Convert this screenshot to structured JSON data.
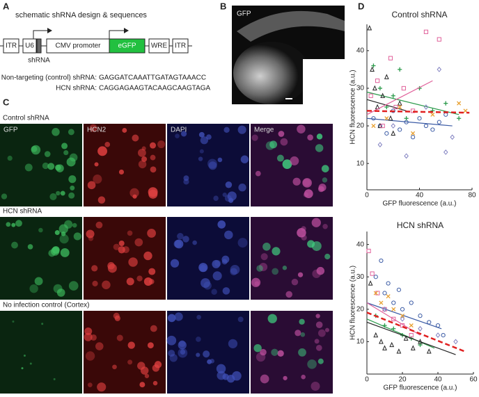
{
  "panels": {
    "a": "A",
    "b": "B",
    "c": "C",
    "d": "D"
  },
  "schematic": {
    "title": "schematic shRNA design & sequences",
    "elements": [
      "ITR",
      "U6",
      "CMV promoter",
      "eGFP",
      "WRE",
      "ITR"
    ],
    "shrna_label": "shRNA",
    "sequences": [
      {
        "label": "Non-targeting (control) shRNA:",
        "seq": "GAGGATCAAATTGATAGTAAACC"
      },
      {
        "label": "HCN shRNA:",
        "seq": "CAGGAGAAGTACAAGCAAGTAGA"
      }
    ]
  },
  "image_b": {
    "label": "GFP"
  },
  "image_grid": {
    "columns": [
      "GFP",
      "HCN2",
      "DAPI",
      "Merge"
    ],
    "rows": [
      "Control shRNA",
      "HCN shRNA",
      "No infection control (Cortex)"
    ]
  },
  "chart_data": [
    {
      "type": "scatter",
      "title": "Control shRNA",
      "x_label": "GFP fluorescence (a.u.)",
      "y_label": "HCN fluorescence (a.u.)",
      "xlim": [
        0,
        80
      ],
      "ylim": [
        3,
        47
      ],
      "xticks": [
        0,
        40,
        80
      ],
      "yticks": [
        10,
        20,
        30,
        40
      ],
      "series": [
        {
          "color": "#3b5ba5",
          "marker": "circle",
          "x": [
            5,
            10,
            15,
            20,
            25,
            30,
            35,
            40,
            45,
            50,
            55,
            60
          ],
          "values": [
            22,
            20,
            18,
            24,
            19,
            21,
            17,
            22,
            20,
            19,
            21,
            23
          ],
          "fit": {
            "x": [
              0,
              65
            ],
            "values": [
              22,
              20
            ]
          }
        },
        {
          "color": "#2a9a4a",
          "marker": "plus",
          "x": [
            5,
            10,
            15,
            20,
            25,
            30,
            40,
            50,
            60,
            70
          ],
          "values": [
            36,
            30,
            25,
            28,
            35,
            22,
            30,
            24,
            26,
            22
          ],
          "fit": {
            "x": [
              0,
              70
            ],
            "values": [
              29,
              23
            ]
          }
        },
        {
          "color": "#222222",
          "marker": "triangle",
          "x": [
            2,
            4,
            6,
            8,
            10,
            12,
            15,
            18,
            20,
            25
          ],
          "values": [
            46,
            35,
            30,
            25,
            20,
            28,
            33,
            22,
            18,
            26
          ],
          "fit": {
            "x": [
              0,
              30
            ],
            "values": [
              27,
              24
            ]
          }
        },
        {
          "color": "#e0609a",
          "marker": "square",
          "x": [
            3,
            8,
            12,
            18,
            22,
            28,
            35,
            45,
            55
          ],
          "values": [
            28,
            32,
            20,
            38,
            25,
            30,
            24,
            45,
            43
          ],
          "fit": {
            "x": [
              0,
              50
            ],
            "values": [
              23,
              32
            ]
          }
        },
        {
          "color": "#e8a030",
          "marker": "x",
          "x": [
            5,
            15,
            25,
            35,
            50,
            70,
            75
          ],
          "values": [
            20,
            22,
            25,
            18,
            23,
            26,
            24
          ]
        },
        {
          "color": "#8080c0",
          "marker": "diamond",
          "x": [
            10,
            20,
            30,
            45,
            55,
            60,
            65
          ],
          "values": [
            15,
            20,
            12,
            25,
            35,
            13,
            17
          ]
        }
      ],
      "overall_fit": {
        "color": "#e02020",
        "x": [
          0,
          78
        ],
        "values": [
          24,
          23.5
        ]
      }
    },
    {
      "type": "scatter",
      "title": "HCN shRNA",
      "x_label": "GFP fluorescence (a.u.)",
      "y_label": "HCN fluorescence (a.u.)",
      "xlim": [
        0,
        60
      ],
      "ylim": [
        0,
        44
      ],
      "xticks": [
        0,
        20,
        40,
        60
      ],
      "yticks": [
        10,
        20,
        30,
        40
      ],
      "series": [
        {
          "color": "#3b5ba5",
          "marker": "circle",
          "x": [
            5,
            10,
            15,
            20,
            25,
            30,
            35,
            40,
            43,
            8,
            12,
            18
          ],
          "values": [
            30,
            25,
            22,
            20,
            22,
            18,
            16,
            15,
            12,
            35,
            28,
            26
          ],
          "fit": {
            "x": [
              0,
              42
            ],
            "values": [
              22,
              14
            ]
          }
        },
        {
          "color": "#2a9a4a",
          "marker": "plus",
          "x": [
            5,
            10,
            15,
            20,
            25,
            30
          ],
          "values": [
            18,
            15,
            14,
            12,
            11,
            9
          ],
          "fit": {
            "x": [
              0,
              38
            ],
            "values": [
              17,
              8
            ]
          }
        },
        {
          "color": "#222222",
          "marker": "triangle",
          "x": [
            2,
            5,
            8,
            10,
            14,
            18,
            22,
            26,
            30,
            35
          ],
          "values": [
            28,
            12,
            10,
            8,
            9,
            7,
            11,
            8,
            10,
            7
          ],
          "fit": {
            "x": [
              0,
              50
            ],
            "values": [
              16,
              6
            ]
          }
        },
        {
          "color": "#e0609a",
          "marker": "square",
          "x": [
            1,
            3,
            6,
            10,
            15,
            20,
            25
          ],
          "values": [
            38,
            31,
            25,
            20,
            17,
            15,
            12
          ],
          "fit": {
            "x": [
              0,
              30
            ],
            "values": [
              22,
              12
            ]
          }
        },
        {
          "color": "#e8a030",
          "marker": "x",
          "x": [
            5,
            8,
            12,
            15,
            20,
            25
          ],
          "values": [
            25,
            22,
            24,
            20,
            18,
            15
          ]
        },
        {
          "color": "#8080c0",
          "marker": "diamond",
          "x": [
            10,
            20,
            30,
            40,
            50
          ],
          "values": [
            20,
            17,
            14,
            12,
            10
          ]
        }
      ],
      "overall_fit": {
        "color": "#e02020",
        "x": [
          0,
          55
        ],
        "values": [
          19,
          7
        ]
      }
    }
  ]
}
